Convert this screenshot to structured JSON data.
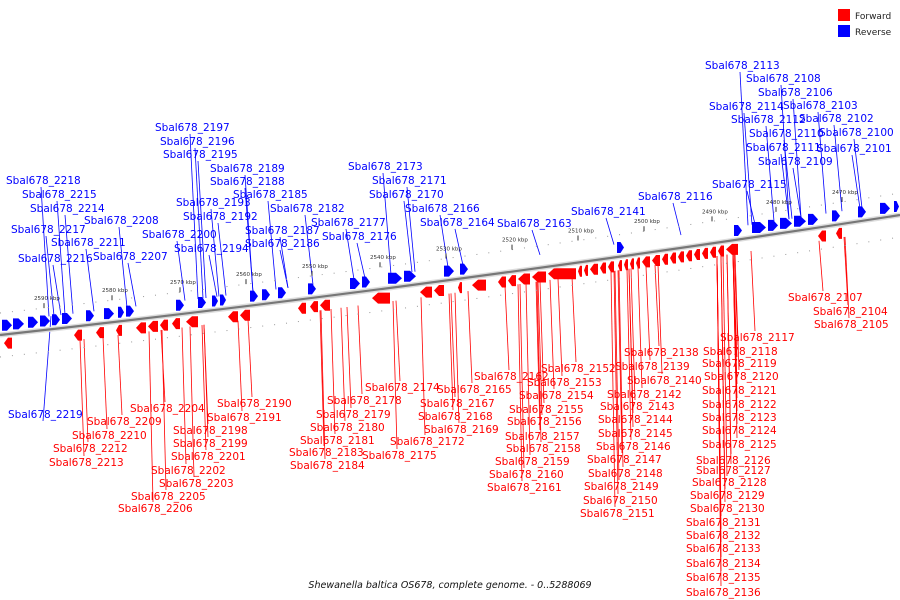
{
  "caption": "Shewanella baltica OS678, complete genome. - 0..5288069",
  "legend": [
    {
      "label": "Forward",
      "color": "#ff0000"
    },
    {
      "label": "Reverse",
      "color": "#0000ff"
    }
  ],
  "colors": {
    "forward": "#ff0000",
    "reverse": "#0000ff",
    "backbone": "#777777"
  },
  "ticks": [
    "2590 kbp",
    "2580 kbp",
    "2570 kbp",
    "2560 kbp",
    "2550 kbp",
    "2540 kbp",
    "2530 kbp",
    "2520 kbp",
    "2510 kbp",
    "2500 kbp",
    "2490 kbp",
    "2480 kbp",
    "2470 kbp"
  ],
  "reverse_labels": [
    "Sbal678_2113",
    "Sbal678_2108",
    "Sbal678_2106",
    "Sbal678_2114",
    "Sbal678_2103",
    "Sbal678_2112",
    "Sbal678_2102",
    "Sbal678_2110",
    "Sbal678_2100",
    "Sbal678_2111",
    "Sbal678_2101",
    "Sbal678_2109",
    "Sbal678_2197",
    "Sbal678_2196",
    "Sbal678_2195",
    "Sbal678_2173",
    "Sbal678_2189",
    "Sbal678_2171",
    "Sbal678_2218",
    "Sbal678_2188",
    "Sbal678_2115",
    "Sbal678_2215",
    "Sbal678_2185",
    "Sbal678_2170",
    "Sbal678_2116",
    "Sbal678_2193",
    "Sbal678_2214",
    "Sbal678_2182",
    "Sbal678_2166",
    "Sbal678_2141",
    "Sbal678_2192",
    "Sbal678_2208",
    "Sbal678_2177",
    "Sbal678_2163",
    "Sbal678_2164",
    "Sbal678_2217",
    "Sbal678_2200",
    "Sbal678_2187",
    "Sbal678_2211",
    "Sbal678_2176",
    "Sbal678_2194",
    "Sbal678_2186",
    "Sbal678_2216",
    "Sbal678_2207",
    "Sbal678_2219"
  ],
  "forward_labels": [
    "Sbal678_2107",
    "Sbal678_2104",
    "Sbal678_2105",
    "Sbal678_2117",
    "Sbal678_2138",
    "Sbal678_2118",
    "Sbal678_2152",
    "Sbal678_2139",
    "Sbal678_2119",
    "Sbal678_2162",
    "Sbal678_2153",
    "Sbal678_2140",
    "Sbal678_2120",
    "Sbal678_2174",
    "Sbal678_2165",
    "Sbal678_2154",
    "Sbal678_2142",
    "Sbal678_2121",
    "Sbal678_2190",
    "Sbal678_2178",
    "Sbal678_2167",
    "Sbal678_2155",
    "Sbal678_2143",
    "Sbal678_2122",
    "Sbal678_2204",
    "Sbal678_2191",
    "Sbal678_2179",
    "Sbal678_2168",
    "Sbal678_2156",
    "Sbal678_2144",
    "Sbal678_2123",
    "Sbal678_2209",
    "Sbal678_2198",
    "Sbal678_2180",
    "Sbal678_2169",
    "Sbal678_2157",
    "Sbal678_2145",
    "Sbal678_2124",
    "Sbal678_2210",
    "Sbal678_2199",
    "Sbal678_2181",
    "Sbal678_2172",
    "Sbal678_2158",
    "Sbal678_2146",
    "Sbal678_2125",
    "Sbal678_2212",
    "Sbal678_2201",
    "Sbal678_2183",
    "Sbal678_2175",
    "Sbal678_2159",
    "Sbal678_2147",
    "Sbal678_2126",
    "Sbal678_2213",
    "Sbal678_2202",
    "Sbal678_2184",
    "Sbal678_2160",
    "Sbal678_2148",
    "Sbal678_2127",
    "Sbal678_2203",
    "Sbal678_2161",
    "Sbal678_2149",
    "Sbal678_2128",
    "Sbal678_2205",
    "Sbal678_2150",
    "Sbal678_2129",
    "Sbal678_2206",
    "Sbal678_2151",
    "Sbal678_2130",
    "Sbal678_2131",
    "Sbal678_2132",
    "Sbal678_2133",
    "Sbal678_2134",
    "Sbal678_2135",
    "Sbal678_2136"
  ]
}
